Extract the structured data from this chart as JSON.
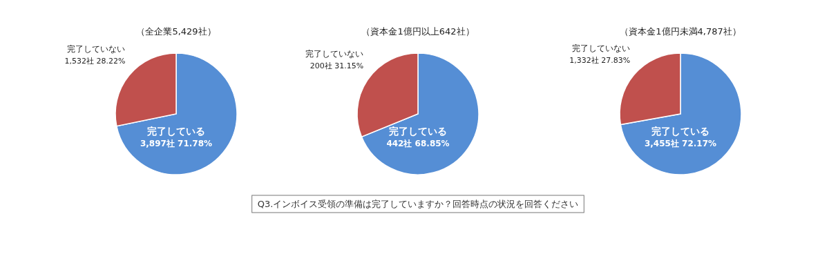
{
  "chart_data": [
    {
      "type": "pie",
      "title": "（全企業5,429社）",
      "categories": [
        "完了している",
        "完了していない"
      ],
      "values": [
        3897,
        1532
      ],
      "colors": [
        "#558ed5",
        "#c0504d"
      ],
      "value_labels": [
        "3,897社 71.78%",
        "1,532社 28.22%"
      ]
    },
    {
      "type": "pie",
      "title": "（資本金1億円以上642社）",
      "categories": [
        "完了している",
        "完了していない"
      ],
      "values": [
        442,
        200
      ],
      "colors": [
        "#558ed5",
        "#c0504d"
      ],
      "value_labels": [
        "442社 68.85%",
        "200社 31.15%"
      ],
      "annotations": [
        "Q3.インボイス受領の準備は完了していますか？回答時点の状況を回答ください"
      ]
    },
    {
      "type": "pie",
      "title": "（資本金1億円未満4,787社）",
      "categories": [
        "完了している",
        "完了していない"
      ],
      "values": [
        3455,
        1332
      ],
      "colors": [
        "#558ed5",
        "#c0504d"
      ],
      "value_labels": [
        "3,455社 72.17%",
        "1,332社 27.83%"
      ]
    }
  ]
}
